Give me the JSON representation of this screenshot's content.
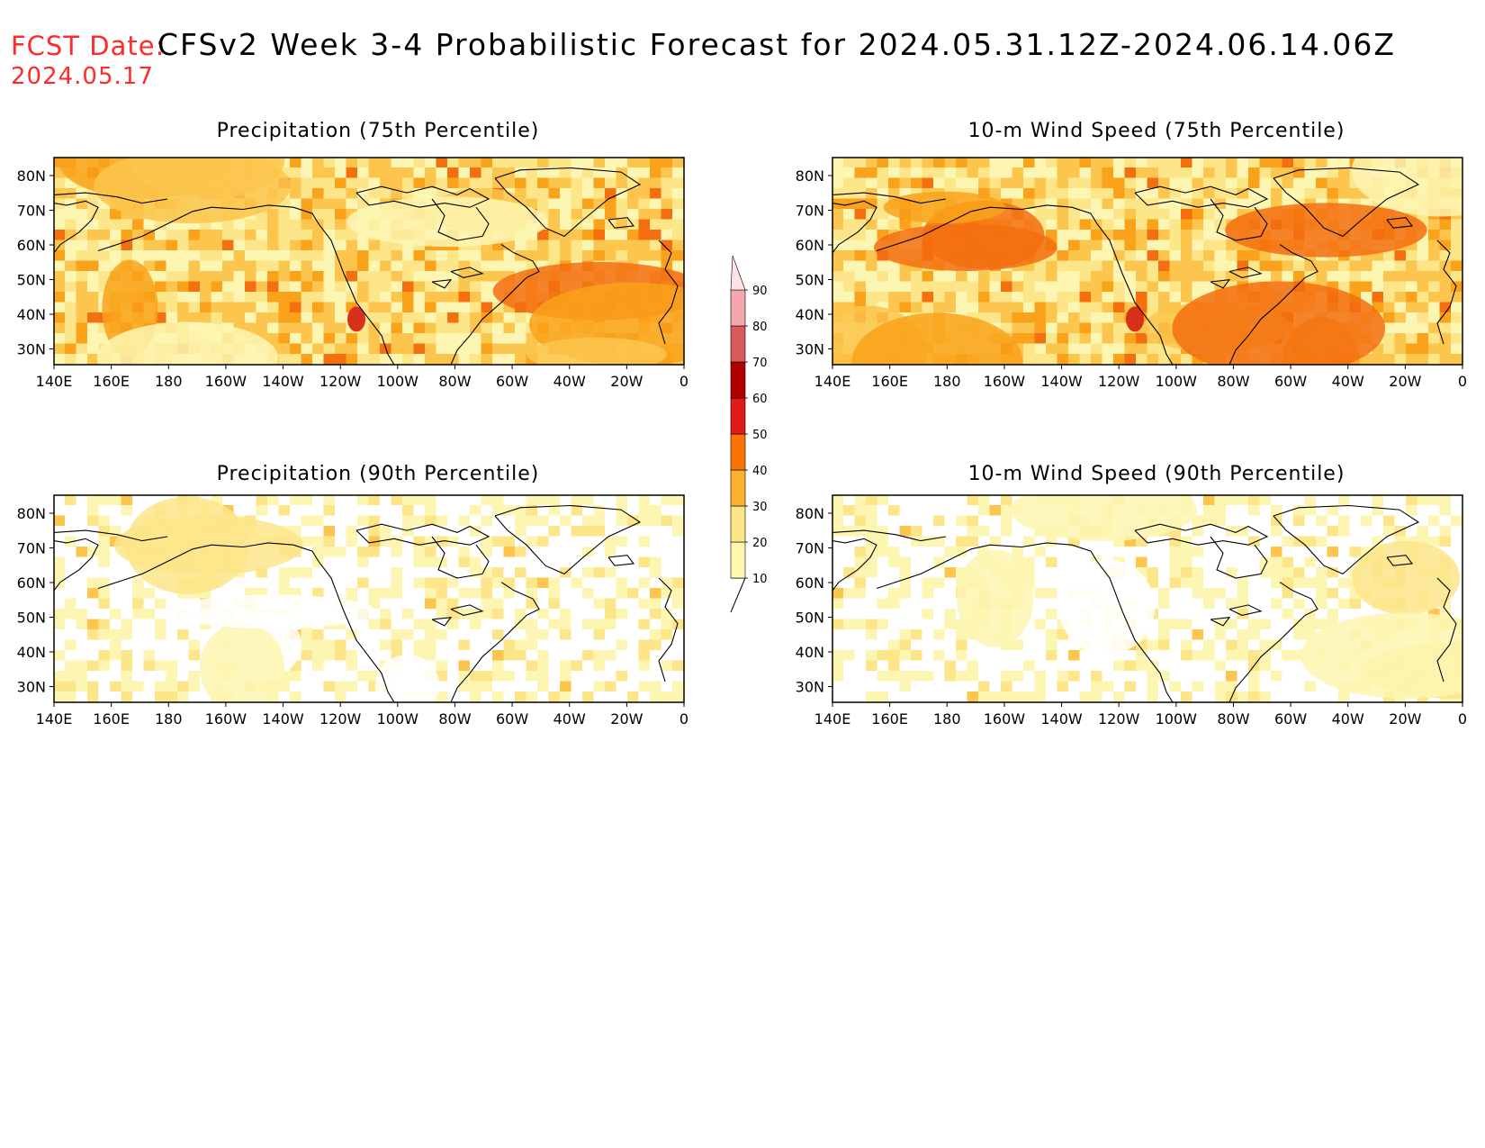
{
  "header": {
    "fcst_label": "FCST Date:",
    "fcst_date": "2024.05.17",
    "title": "CFSv2 Week 3-4 Probabilistic Forecast for 2024.05.31.12Z-2024.06.14.06Z"
  },
  "panels": [
    {
      "id": "precip75",
      "title": "Precipitation (75th Percentile)",
      "level": "high"
    },
    {
      "id": "wind75",
      "title": "10-m Wind Speed (75th Percentile)",
      "level": "high"
    },
    {
      "id": "precip90",
      "title": "Precipitation (90th Percentile)",
      "level": "low"
    },
    {
      "id": "wind90",
      "title": "10-m Wind Speed (90th Percentile)",
      "level": "low"
    }
  ],
  "axes": {
    "lon_labels": [
      "140E",
      "160E",
      "180",
      "160W",
      "140W",
      "120W",
      "100W",
      "80W",
      "60W",
      "40W",
      "20W",
      "0"
    ],
    "lat_labels": [
      "80N",
      "70N",
      "60N",
      "50N",
      "40N",
      "30N"
    ]
  },
  "colorbar": {
    "levels": [
      "10",
      "20",
      "30",
      "40",
      "50",
      "60",
      "70",
      "80",
      "90"
    ],
    "colors": [
      "#fff9b0",
      "#fde58a",
      "#fdb030",
      "#f97306",
      "#e31a1c",
      "#b10000",
      "#d85a5a",
      "#f2a6ad",
      "#fde3e6"
    ]
  },
  "colors": {
    "empty": "#ffffff",
    "low": "#fdf6b2",
    "mid": "#fde58a",
    "high": "#fbc54e",
    "orange": "#f9a21a",
    "deep": "#f36f10",
    "red": "#d8301a",
    "coast": "#000000"
  }
}
